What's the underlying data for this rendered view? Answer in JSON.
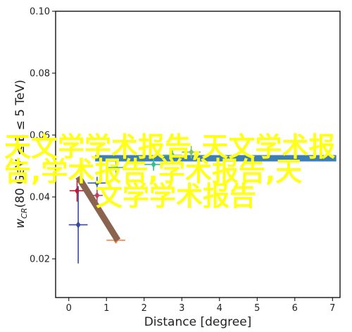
{
  "chart_data": {
    "type": "scatter",
    "xlabel": "Distance [degree]",
    "ylabel_prefix": "w",
    "ylabel_sub": "CR",
    "ylabel_suffix": "(80 GeV ≤ E ≤ 5 TeV)",
    "xlim": [
      -0.35,
      7.2
    ],
    "ylim": [
      0.0075,
      0.1
    ],
    "xticks": [
      0,
      1,
      2,
      3,
      4,
      5,
      6,
      7
    ],
    "yticks": [
      0.02,
      0.04,
      0.06,
      0.08,
      0.1
    ],
    "ytick_labels": [
      "0.02",
      "0.04",
      "0.06",
      "0.08",
      "0.10"
    ],
    "grid": false,
    "band": {
      "y": 0.0525,
      "x_from": 0.7,
      "x_to": 7.1,
      "color": "#3c7fb6"
    },
    "diagonal_line": {
      "x": [
        0.25,
        1.3
      ],
      "y": [
        0.0465,
        0.026
      ],
      "color": "#8b6450"
    },
    "points": [
      {
        "x": 0.25,
        "y": 0.031,
        "yerr_low": 0.0125,
        "yerr_high": 0.0125,
        "xerr": 0.25,
        "color": "#3a4a9a",
        "marker": "diamond"
      },
      {
        "x": 0.22,
        "y": 0.042,
        "yerr_low": 0.0035,
        "yerr_high": 0.0035,
        "xerr": 0.2,
        "color": "#b3203a",
        "marker": "diamond"
      },
      {
        "x": 0.75,
        "y": 0.0445,
        "yerr_low": 0.002,
        "yerr_high": 0.002,
        "xerr": 0.25,
        "color": "#3060b0",
        "marker": "diamond"
      },
      {
        "x": 0.75,
        "y": 0.0405,
        "yerr_low": 0.002,
        "yerr_high": 0.002,
        "xerr": 0.15,
        "color": "#c04060",
        "marker": "diamond"
      },
      {
        "x": 1.25,
        "y": 0.026,
        "yerr_low": 0.001,
        "yerr_high": 0.001,
        "xerr": 0.25,
        "color": "#f08040",
        "marker": "diamond"
      },
      {
        "x": 1.25,
        "y": 0.0495,
        "yerr_low": 0.002,
        "yerr_high": 0.002,
        "xerr": 0.2,
        "color": "#40b0a0",
        "marker": "diamond"
      },
      {
        "x": 2.25,
        "y": 0.0505,
        "yerr_low": 0.002,
        "yerr_high": 0.002,
        "xerr": 0.25,
        "color": "#30c090",
        "marker": "diamond"
      },
      {
        "x": 2.75,
        "y": 0.0535,
        "yerr_low": 0.002,
        "yerr_high": 0.002,
        "xerr": 0.25,
        "color": "#50c070",
        "marker": "diamond"
      },
      {
        "x": 3.25,
        "y": 0.0545,
        "yerr_low": 0.002,
        "yerr_high": 0.002,
        "xerr": 0.25,
        "color": "#80c060",
        "marker": "diamond"
      }
    ]
  },
  "overlay": {
    "lines": [
      "天文学学术报告,天文学术报",
      "告,学术报告,学术报告,天",
      "文学学术报告"
    ]
  }
}
